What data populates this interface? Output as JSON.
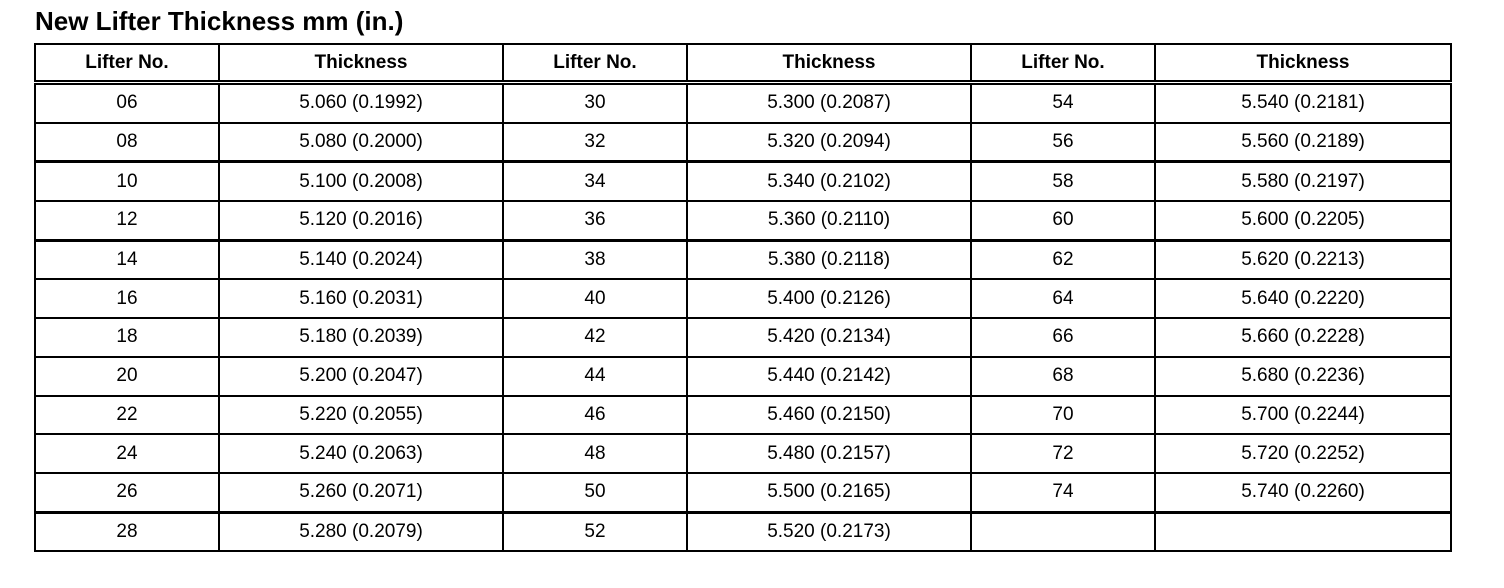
{
  "title": "New Lifter Thickness mm (in.)",
  "headers": [
    "Lifter No.",
    "Thickness",
    "Lifter No.",
    "Thickness",
    "Lifter No.",
    "Thickness"
  ],
  "rows": [
    [
      "06",
      "5.060 (0.1992)",
      "30",
      "5.300 (0.2087)",
      "54",
      "5.540 (0.2181)"
    ],
    [
      "08",
      "5.080 (0.2000)",
      "32",
      "5.320 (0.2094)",
      "56",
      "5.560 (0.2189)"
    ],
    [
      "10",
      "5.100 (0.2008)",
      "34",
      "5.340 (0.2102)",
      "58",
      "5.580 (0.2197)"
    ],
    [
      "12",
      "5.120 (0.2016)",
      "36",
      "5.360 (0.2110)",
      "60",
      "5.600 (0.2205)"
    ],
    [
      "14",
      "5.140 (0.2024)",
      "38",
      "5.380 (0.2118)",
      "62",
      "5.620 (0.2213)"
    ],
    [
      "16",
      "5.160 (0.2031)",
      "40",
      "5.400 (0.2126)",
      "64",
      "5.640 (0.2220)"
    ],
    [
      "18",
      "5.180 (0.2039)",
      "42",
      "5.420 (0.2134)",
      "66",
      "5.660 (0.2228)"
    ],
    [
      "20",
      "5.200 (0.2047)",
      "44",
      "5.440 (0.2142)",
      "68",
      "5.680 (0.2236)"
    ],
    [
      "22",
      "5.220 (0.2055)",
      "46",
      "5.460 (0.2150)",
      "70",
      "5.700 (0.2244)"
    ],
    [
      "24",
      "5.240 (0.2063)",
      "48",
      "5.480 (0.2157)",
      "72",
      "5.720 (0.2252)"
    ],
    [
      "26",
      "5.260 (0.2071)",
      "50",
      "5.500 (0.2165)",
      "74",
      "5.740 (0.2260)"
    ],
    [
      "28",
      "5.280 (0.2079)",
      "52",
      "5.520 (0.2173)",
      "",
      ""
    ]
  ]
}
